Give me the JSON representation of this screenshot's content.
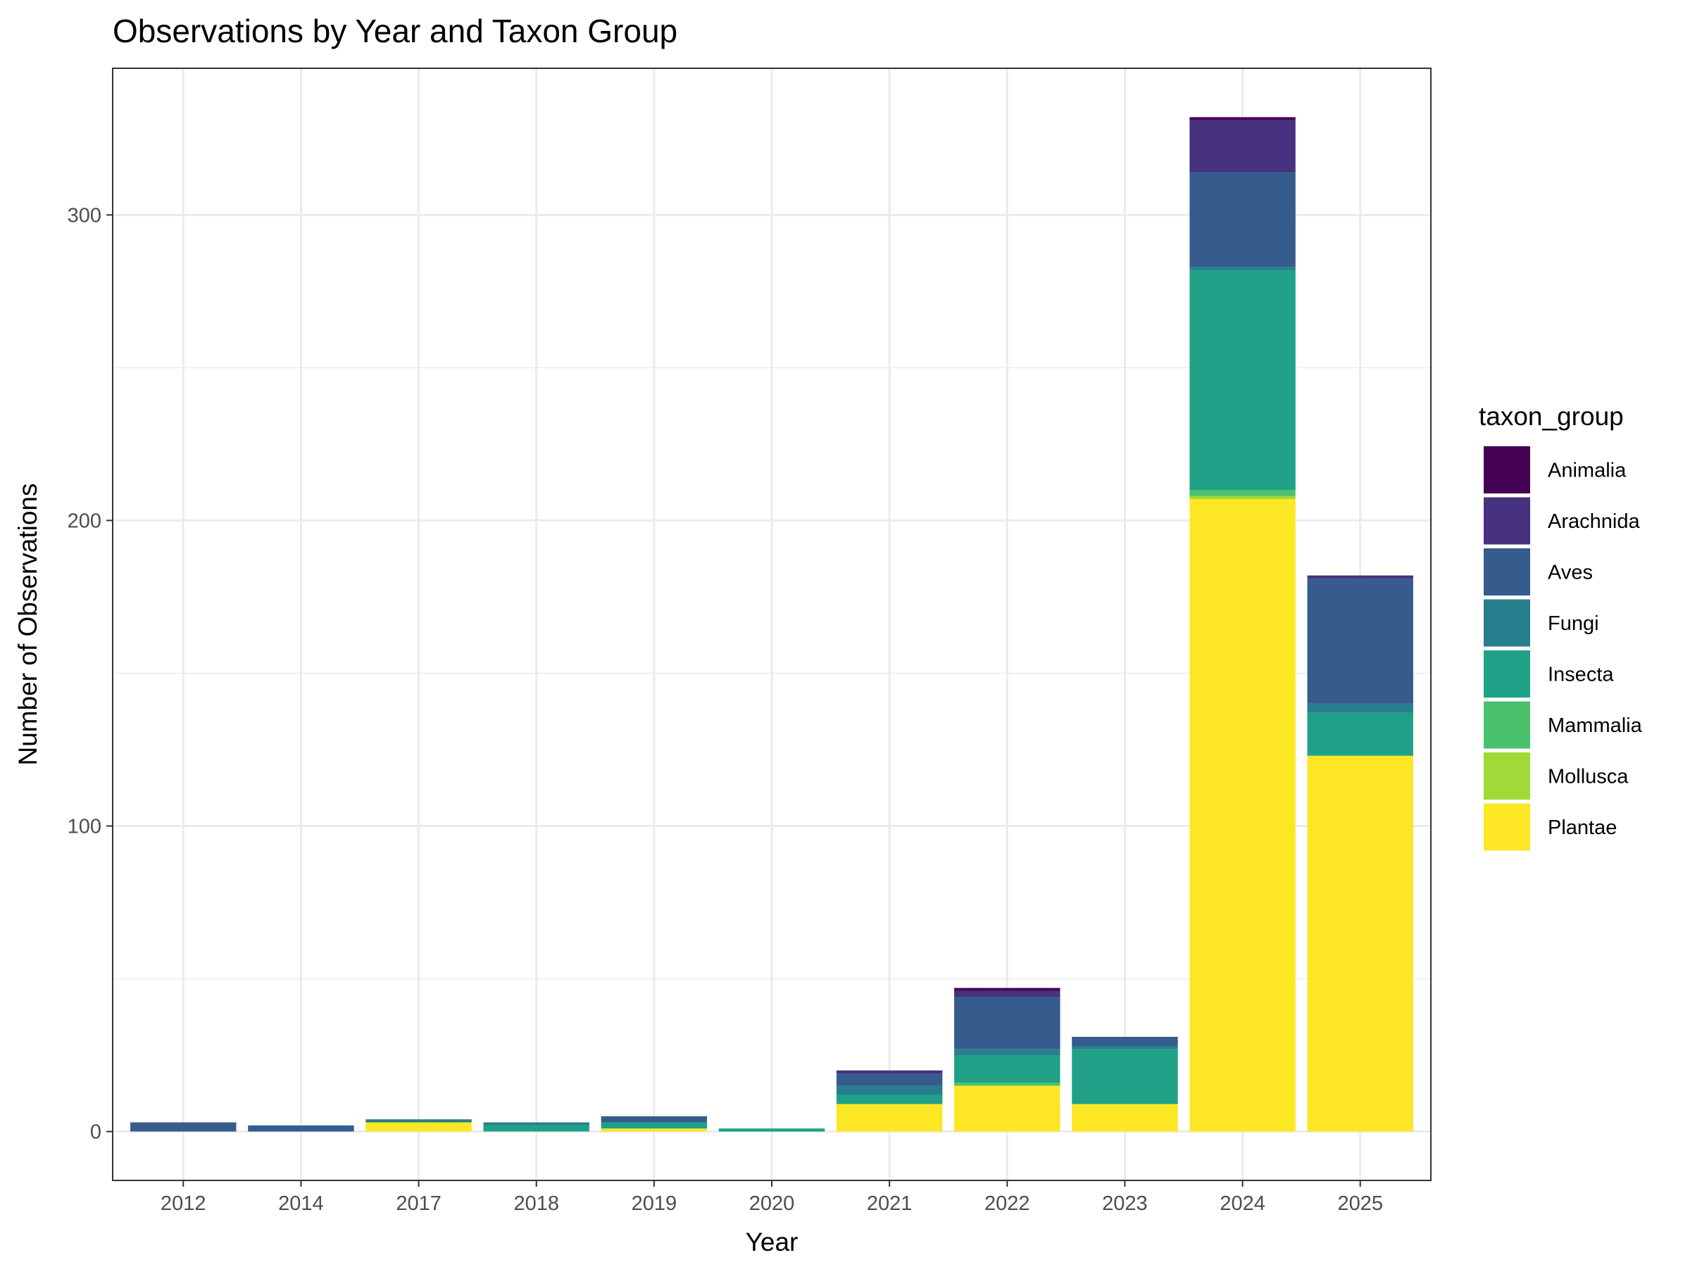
{
  "chart_data": {
    "type": "bar",
    "stacked": true,
    "title": "Observations by Year and Taxon Group",
    "xlabel": "Year",
    "ylabel": "Number of Observations",
    "categories": [
      "2012",
      "2014",
      "2017",
      "2018",
      "2019",
      "2020",
      "2021",
      "2022",
      "2023",
      "2024",
      "2025"
    ],
    "ylim": [
      -16,
      348
    ],
    "y_ticks": [
      0,
      100,
      200,
      300
    ],
    "grid": true,
    "legend": {
      "title": "taxon_group",
      "position": "right"
    },
    "series": [
      {
        "name": "Plantae",
        "color": "#FDE725",
        "values": [
          0,
          0,
          3,
          0,
          1,
          0,
          9,
          15,
          9,
          207,
          123
        ]
      },
      {
        "name": "Mollusca",
        "color": "#A0DA39",
        "values": [
          0,
          0,
          0,
          0,
          0,
          0,
          0,
          0,
          0,
          1,
          0
        ]
      },
      {
        "name": "Mammalia",
        "color": "#4AC16D",
        "values": [
          0,
          0,
          0,
          0,
          0,
          0,
          0,
          1,
          0,
          2,
          0
        ]
      },
      {
        "name": "Insecta",
        "color": "#1FA187",
        "values": [
          0,
          0,
          0,
          2,
          2,
          1,
          3,
          9,
          18,
          72,
          14
        ]
      },
      {
        "name": "Fungi",
        "color": "#277F8E",
        "values": [
          0,
          0,
          1,
          1,
          0,
          0,
          3,
          2,
          1,
          1,
          3
        ]
      },
      {
        "name": "Aves",
        "color": "#365C8D",
        "values": [
          3,
          2,
          0,
          0,
          2,
          0,
          4,
          17,
          3,
          31,
          41
        ]
      },
      {
        "name": "Arachnida",
        "color": "#46327E",
        "values": [
          0,
          0,
          0,
          0,
          0,
          0,
          1,
          2,
          0,
          17,
          1
        ]
      },
      {
        "name": "Animalia",
        "color": "#440154",
        "values": [
          0,
          0,
          0,
          0,
          0,
          0,
          0,
          1,
          0,
          1,
          0
        ]
      }
    ],
    "legend_order": [
      "Animalia",
      "Arachnida",
      "Aves",
      "Fungi",
      "Insecta",
      "Mammalia",
      "Mollusca",
      "Plantae"
    ]
  }
}
